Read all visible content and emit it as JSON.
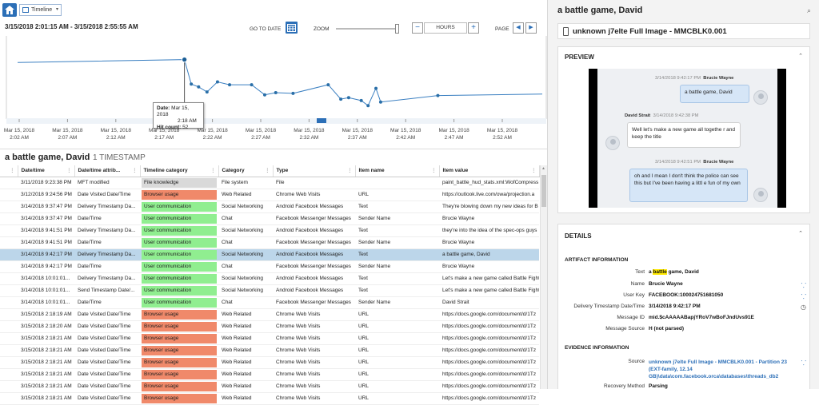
{
  "toolbar": {
    "view_label": "Timeline"
  },
  "chart_controls": {
    "date_range": "3/15/2018 2:01:15 AM  -  3/15/2018 2:55:55 AM",
    "goto_label": "GO TO DATE",
    "zoom_label": "ZOOM",
    "zoom_out": "−",
    "zoom_in": "+",
    "unit": "HOURS",
    "page_label": "PAGE"
  },
  "chart_data": {
    "type": "line",
    "x_tick_labels": [
      [
        "Mar 15, 2018",
        "2:02 AM"
      ],
      [
        "Mar 15, 2018",
        "2:07 AM"
      ],
      [
        "Mar 15, 2018",
        "2:12 AM"
      ],
      [
        "Mar 15, 2018",
        "2:17 AM"
      ],
      [
        "Mar 15, 2018",
        "2:22 AM"
      ],
      [
        "Mar 15, 2018",
        "2:27 AM"
      ],
      [
        "Mar 15, 2018",
        "2:32 AM"
      ],
      [
        "Mar 15, 2018",
        "2:37 AM"
      ],
      [
        "Mar 15, 2018",
        "2:42 AM"
      ],
      [
        "Mar 15, 2018",
        "2:47 AM"
      ],
      [
        "Mar 15, 2018",
        "2:52 AM"
      ]
    ],
    "points": [
      {
        "x": 0.0,
        "y": 0.72
      },
      {
        "x": 0.318,
        "y": 0.76
      },
      {
        "x": 0.331,
        "y": 0.42
      },
      {
        "x": 0.345,
        "y": 0.38
      },
      {
        "x": 0.361,
        "y": 0.31
      },
      {
        "x": 0.381,
        "y": 0.45
      },
      {
        "x": 0.404,
        "y": 0.41
      },
      {
        "x": 0.446,
        "y": 0.41
      },
      {
        "x": 0.471,
        "y": 0.27
      },
      {
        "x": 0.492,
        "y": 0.3
      },
      {
        "x": 0.525,
        "y": 0.29
      },
      {
        "x": 0.592,
        "y": 0.41
      },
      {
        "x": 0.616,
        "y": 0.21
      },
      {
        "x": 0.631,
        "y": 0.23
      },
      {
        "x": 0.655,
        "y": 0.19
      },
      {
        "x": 0.668,
        "y": 0.12
      },
      {
        "x": 0.683,
        "y": 0.36
      },
      {
        "x": 0.692,
        "y": 0.17
      },
      {
        "x": 0.801,
        "y": 0.26
      },
      {
        "x": 1.0,
        "y": 0.28
      }
    ],
    "highlight_index": 1,
    "tooltip": {
      "date_label": "Date:",
      "date": "Mar 15, 2018",
      "time": "2:18 AM",
      "hits_label": "Hit count:",
      "hits": "52"
    }
  },
  "results": {
    "heading": "a battle game, David",
    "count_label": "1 TIMESTAMP",
    "columns": [
      "Date/time",
      "Date/time attrib...",
      "Timeline category",
      "Category",
      "Type",
      "Item name",
      "Item value"
    ],
    "rows": [
      {
        "dt": "3/11/2018 9:23:38 PM",
        "attr": "MFT modified",
        "tl": "File knowledge",
        "tlc": "grey",
        "cat": "File system",
        "type": "File",
        "name": "",
        "value": "paint_battle_hud_stats.xml:WofCompress"
      },
      {
        "dt": "3/12/2018 9:24:56 PM",
        "attr": "Date Visited Date/Time",
        "tl": "Browser usage",
        "tlc": "orange",
        "cat": "Web Related",
        "type": "Chrome Web Visits",
        "name": "URL",
        "value": "https://outlook.live.com/owa/projection.a"
      },
      {
        "dt": "3/14/2018 9:37:47 PM",
        "attr": "Delivery Timestamp Da...",
        "tl": "User communication",
        "tlc": "green",
        "cat": "Social Networking",
        "type": "Android Facebook Messages",
        "name": "Text",
        "value": "They're blowing down my new ideas for B"
      },
      {
        "dt": "3/14/2018 9:37:47 PM",
        "attr": "Date/Time",
        "tl": "User communication",
        "tlc": "green",
        "cat": "Chat",
        "type": "Facebook Messenger Messages",
        "name": "Sender Name",
        "value": "Brucie Wayne"
      },
      {
        "dt": "3/14/2018 9:41:51 PM",
        "attr": "Delivery Timestamp Da...",
        "tl": "User communication",
        "tlc": "green",
        "cat": "Social Networking",
        "type": "Android Facebook Messages",
        "name": "Text",
        "value": "they're into the idea of the spec-ops guys"
      },
      {
        "dt": "3/14/2018 9:41:51 PM",
        "attr": "Date/Time",
        "tl": "User communication",
        "tlc": "green",
        "cat": "Chat",
        "type": "Facebook Messenger Messages",
        "name": "Sender Name",
        "value": "Brucie Wayne"
      },
      {
        "dt": "3/14/2018 9:42:17 PM",
        "attr": "Delivery Timestamp Da...",
        "tl": "User communication",
        "tlc": "green",
        "cat": "Social Networking",
        "type": "Android Facebook Messages",
        "name": "Text",
        "value": "a battle game, David",
        "selected": true
      },
      {
        "dt": "3/14/2018 9:42:17 PM",
        "attr": "Date/Time",
        "tl": "User communication",
        "tlc": "green",
        "cat": "Chat",
        "type": "Facebook Messenger Messages",
        "name": "Sender Name",
        "value": "Brucie Wayne"
      },
      {
        "dt": "3/14/2018 10:01:01...",
        "attr": "Delivery Timestamp Da...",
        "tl": "User communication",
        "tlc": "green",
        "cat": "Social Networking",
        "type": "Android Facebook Messages",
        "name": "Text",
        "value": "Let's make a new game called Battle Fight"
      },
      {
        "dt": "3/14/2018 10:01:01...",
        "attr": "Send Timestamp Date/...",
        "tl": "User communication",
        "tlc": "green",
        "cat": "Social Networking",
        "type": "Android Facebook Messages",
        "name": "Text",
        "value": "Let's make a new game called Battle Fight"
      },
      {
        "dt": "3/14/2018 10:01:01...",
        "attr": "Date/Time",
        "tl": "User communication",
        "tlc": "green",
        "cat": "Chat",
        "type": "Facebook Messenger Messages",
        "name": "Sender Name",
        "value": "David Strait"
      },
      {
        "dt": "3/15/2018 2:18:19 AM",
        "attr": "Date Visited Date/Time",
        "tl": "Browser usage",
        "tlc": "orange",
        "cat": "Web Related",
        "type": "Chrome Web Visits",
        "name": "URL",
        "value": "https://docs.google.com/document/d/1Tz"
      },
      {
        "dt": "3/15/2018 2:18:20 AM",
        "attr": "Date Visited Date/Time",
        "tl": "Browser usage",
        "tlc": "orange",
        "cat": "Web Related",
        "type": "Chrome Web Visits",
        "name": "URL",
        "value": "https://docs.google.com/document/d/1Tz"
      },
      {
        "dt": "3/15/2018 2:18:21 AM",
        "attr": "Date Visited Date/Time",
        "tl": "Browser usage",
        "tlc": "orange",
        "cat": "Web Related",
        "type": "Chrome Web Visits",
        "name": "URL",
        "value": "https://docs.google.com/document/d/1Tz"
      },
      {
        "dt": "3/15/2018 2:18:21 AM",
        "attr": "Date Visited Date/Time",
        "tl": "Browser usage",
        "tlc": "orange",
        "cat": "Web Related",
        "type": "Chrome Web Visits",
        "name": "URL",
        "value": "https://docs.google.com/document/d/1Tz"
      },
      {
        "dt": "3/15/2018 2:18:21 AM",
        "attr": "Date Visited Date/Time",
        "tl": "Browser usage",
        "tlc": "orange",
        "cat": "Web Related",
        "type": "Chrome Web Visits",
        "name": "URL",
        "value": "https://docs.google.com/document/d/1Tz"
      },
      {
        "dt": "3/15/2018 2:18:21 AM",
        "attr": "Date Visited Date/Time",
        "tl": "Browser usage",
        "tlc": "orange",
        "cat": "Web Related",
        "type": "Chrome Web Visits",
        "name": "URL",
        "value": "https://docs.google.com/document/d/1Tz"
      },
      {
        "dt": "3/15/2018 2:18:21 AM",
        "attr": "Date Visited Date/Time",
        "tl": "Browser usage",
        "tlc": "orange",
        "cat": "Web Related",
        "type": "Chrome Web Visits",
        "name": "URL",
        "value": "https://docs.google.com/document/d/1Tz"
      },
      {
        "dt": "3/15/2018 2:18:21 AM",
        "attr": "Date Visited Date/Time",
        "tl": "Browser usage",
        "tlc": "orange",
        "cat": "Web Related",
        "type": "Chrome Web Visits",
        "name": "URL",
        "value": "https://docs.google.com/document/d/1Tz"
      }
    ]
  },
  "tl_colors": {
    "grey": "#d9d9d9",
    "orange": "#f0896a",
    "green": "#90ee90"
  },
  "right": {
    "title": "a battle game, David",
    "source": "unknown j7elte Full Image - MMCBLK0.001",
    "preview": {
      "title": "PREVIEW",
      "messages": [
        {
          "meta": "3/14/2018 9:42:17 PM",
          "sender": "Brucie Wayne",
          "text": "a battle game, David",
          "dir": "out"
        },
        {
          "meta": "3/14/2018 9:42:38 PM",
          "sender": "David Strait",
          "text": "Well let's make a new game all togethe r and keep the title",
          "dir": "in"
        },
        {
          "meta": "3/14/2018 9:42:51 PM",
          "sender": "Brucie Wayne",
          "text": "oh and I mean I don't think the police can see this but I've been having a littl e fun of my own",
          "dir": "out"
        }
      ]
    },
    "details": {
      "title": "DETAILS",
      "artifact_heading": "ARTIFACT INFORMATION",
      "text_label": "Text",
      "text_pre": "a ",
      "text_hl": "battle",
      "text_post": " game, David",
      "fields": [
        {
          "label": "Name",
          "value": "Brucie Wayne"
        },
        {
          "label": "User Key",
          "value": "FACEBOOK:100024751681050"
        },
        {
          "label": "Delivery Timestamp Date/Time",
          "value": "3/14/2018 9:42:17 PM"
        },
        {
          "label": "Message ID",
          "value": "mid.$cAAAAABapjYRoV7wBoFJndUvs91E"
        },
        {
          "label": "Message Source",
          "value": "H (not parsed)"
        }
      ],
      "evidence_heading": "EVIDENCE INFORMATION",
      "source_label": "Source",
      "source_value": "unknown j7elte Full Image - MMCBLK0.001 - Partition 23 (EXT-family, 12.14 GB)\\data\\com.facebook.orca\\databases\\threads_db2",
      "recovery_label": "Recovery Method",
      "recovery_value": "Parsing"
    }
  }
}
